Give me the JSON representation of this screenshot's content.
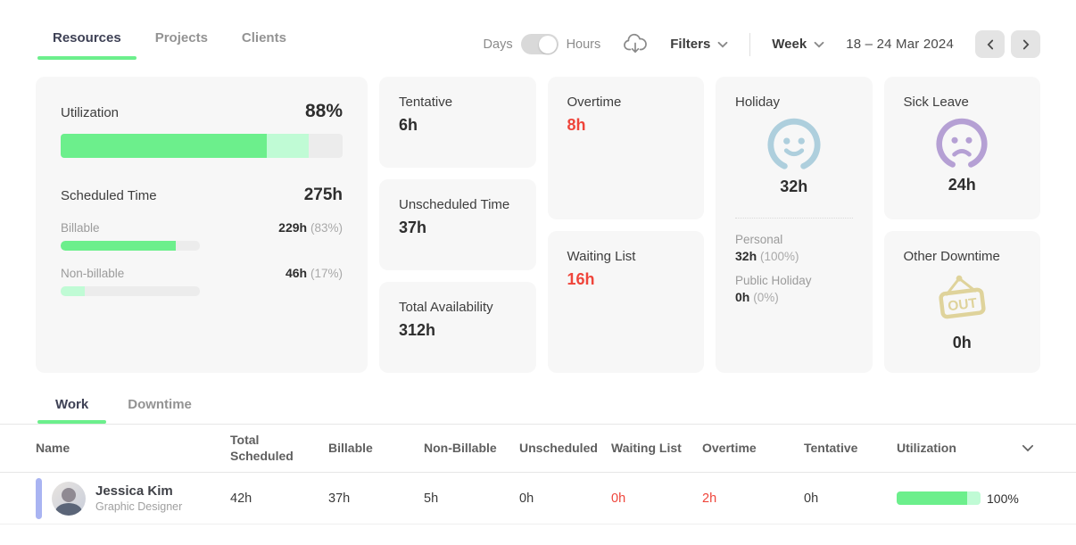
{
  "colors": {
    "green": "#6CEF8C",
    "mint": "#C0FBD5",
    "track": "#ECECEC",
    "red": "#EF453B",
    "holiday-blue": "#AECFDD",
    "sick-purple": "#B5A0D4",
    "out-tan": "#DFD39B",
    "periwinkle": "#A9B4F2"
  },
  "header": {
    "tabs": [
      {
        "label": "Resources"
      },
      {
        "label": "Projects"
      },
      {
        "label": "Clients"
      }
    ],
    "active_tab": "Resources",
    "toggle": {
      "left_label": "Days",
      "right_label": "Hours",
      "selected": "Hours"
    },
    "filters": {
      "label": "Filters"
    },
    "period": {
      "label": "Week"
    },
    "date_range": "18 – 24 Mar 2024"
  },
  "summary": {
    "utilization": {
      "label": "Utilization",
      "value": "88%",
      "bar_green": 73,
      "bar_mint": 15
    },
    "scheduled_time": {
      "label": "Scheduled Time",
      "value": "275h"
    },
    "billable": {
      "label": "Billable",
      "value": "229h",
      "percent": "(83%)",
      "bar_green": 83
    },
    "non_billable": {
      "label": "Non-billable",
      "value": "46h",
      "percent": "(17%)",
      "bar_mint": 17
    },
    "tentative": {
      "label": "Tentative",
      "value": "6h"
    },
    "unscheduled_time": {
      "label": "Unscheduled Time",
      "value": "37h"
    },
    "total_availability": {
      "label": "Total Availability",
      "value": "312h"
    },
    "overtime": {
      "label": "Overtime",
      "value": "8h"
    },
    "waiting_list": {
      "label": "Waiting List",
      "value": "16h"
    },
    "holiday": {
      "label": "Holiday",
      "value": "32h",
      "personal_label": "Personal",
      "personal_value": "32h",
      "personal_percent": "(100%)",
      "public_label": "Public Holiday",
      "public_value": "0h",
      "public_percent": "(0%)"
    },
    "sick_leave": {
      "label": "Sick Leave",
      "value": "24h"
    },
    "other_downtime": {
      "label": "Other Downtime",
      "value": "0h",
      "sign_text": "OUT"
    }
  },
  "list": {
    "tabs": [
      {
        "label": "Work"
      },
      {
        "label": "Downtime"
      }
    ],
    "active_tab": "Work",
    "columns": [
      "Name",
      "Total Scheduled",
      "Billable",
      "Non-Billable",
      "Unscheduled",
      "Waiting List",
      "Overtime",
      "Tentative",
      "Utilization"
    ],
    "rows": [
      {
        "name": "Jessica Kim",
        "role": "Graphic Designer",
        "total_scheduled": "42h",
        "billable": "37h",
        "non_billable": "5h",
        "unscheduled": "0h",
        "waiting_list": "0h",
        "overtime": "2h",
        "tentative": "0h",
        "utilization": "100%",
        "bar_green": 84,
        "bar_mint": 16
      }
    ]
  }
}
